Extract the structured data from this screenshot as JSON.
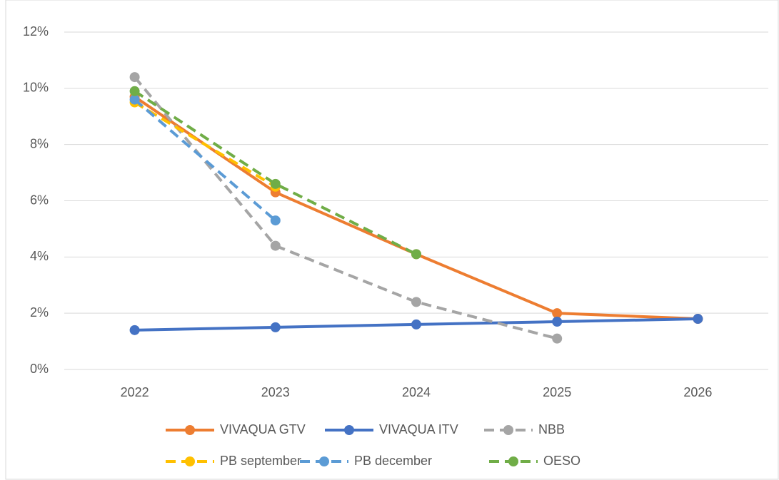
{
  "chart_data": {
    "type": "line",
    "categories": [
      "2022",
      "2023",
      "2024",
      "2025",
      "2026"
    ],
    "series": [
      {
        "name": "VIVAQUA GTV",
        "color": "#ED7D31",
        "dashed": false,
        "values": [
          9.7,
          6.3,
          4.1,
          2.0,
          1.8
        ]
      },
      {
        "name": "VIVAQUA ITV",
        "color": "#4472C4",
        "dashed": false,
        "values": [
          1.4,
          1.5,
          1.6,
          1.7,
          1.8
        ]
      },
      {
        "name": "NBB",
        "color": "#A5A5A5",
        "dashed": true,
        "values": [
          10.4,
          4.4,
          2.4,
          1.1,
          null
        ]
      },
      {
        "name": "PB september",
        "color": "#FFC000",
        "dashed": true,
        "values": [
          9.5,
          6.5,
          null,
          null,
          null
        ]
      },
      {
        "name": "PB december",
        "color": "#5B9BD5",
        "dashed": true,
        "values": [
          9.6,
          5.3,
          null,
          null,
          null
        ]
      },
      {
        "name": "OESO",
        "color": "#70AD47",
        "dashed": true,
        "values": [
          9.9,
          6.6,
          4.1,
          null,
          null
        ]
      }
    ],
    "ylim": [
      0,
      12
    ],
    "yticks": [
      {
        "value": 0,
        "label": "0%"
      },
      {
        "value": 2,
        "label": "2%"
      },
      {
        "value": 4,
        "label": "4%"
      },
      {
        "value": 6,
        "label": "6%"
      },
      {
        "value": 8,
        "label": "8%"
      },
      {
        "value": 10,
        "label": "10%"
      },
      {
        "value": 12,
        "label": "12%"
      }
    ],
    "grid": true,
    "legend": "bottom"
  }
}
